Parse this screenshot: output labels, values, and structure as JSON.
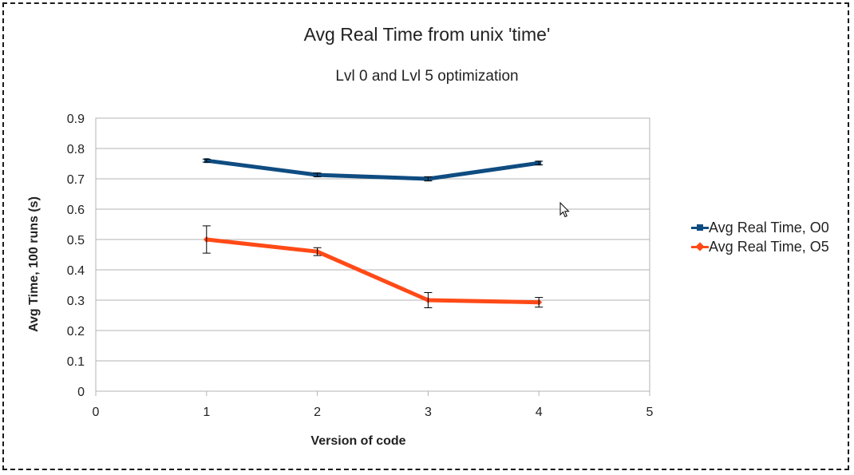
{
  "chart_data": {
    "type": "line",
    "title": "Avg Real Time from unix 'time'",
    "subtitle": "Lvl 0 and Lvl 5 optimization",
    "xlabel": "Version of code",
    "ylabel": "Avg Time, 100 runs (s)",
    "xlim": [
      0,
      5
    ],
    "ylim": [
      0,
      0.9
    ],
    "xticks": [
      "0",
      "1",
      "2",
      "3",
      "4",
      "5"
    ],
    "yticks": [
      "0",
      "0.1",
      "0.2",
      "0.3",
      "0.4",
      "0.5",
      "0.6",
      "0.7",
      "0.8",
      "0.9"
    ],
    "grid": true,
    "legend_position": "right",
    "series": [
      {
        "name": "Avg Real Time, O0",
        "color": "#0f4c81",
        "marker": "square",
        "x": [
          1,
          2,
          3,
          4
        ],
        "y": [
          0.76,
          0.713,
          0.7,
          0.752
        ],
        "error": [
          0.005,
          0.006,
          0.007,
          0.006
        ]
      },
      {
        "name": "Avg Real Time, O5",
        "color": "#ff4a17",
        "marker": "diamond",
        "x": [
          1,
          2,
          3,
          4
        ],
        "y": [
          0.5,
          0.46,
          0.3,
          0.293
        ],
        "error": [
          0.045,
          0.013,
          0.025,
          0.016
        ]
      }
    ]
  }
}
